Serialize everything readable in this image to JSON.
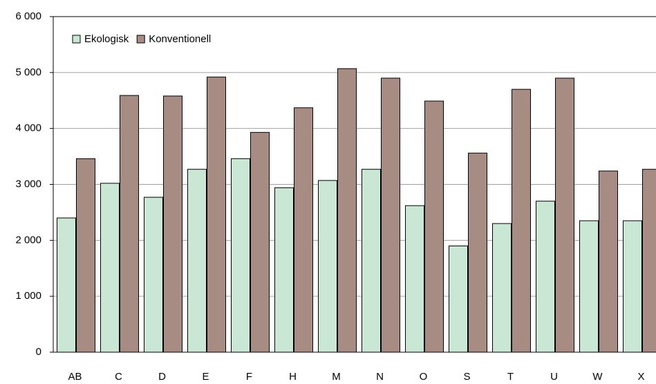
{
  "chart_data": {
    "type": "bar",
    "categories": [
      "AB",
      "C",
      "D",
      "E",
      "F",
      "H",
      "M",
      "N",
      "O",
      "S",
      "T",
      "U",
      "W",
      "X"
    ],
    "series": [
      {
        "name": "Ekologisk",
        "color": "#c9e7d4",
        "values": [
          2400,
          3020,
          2770,
          3270,
          3460,
          2940,
          3070,
          3270,
          2620,
          1900,
          2300,
          2700,
          2350,
          2350
        ]
      },
      {
        "name": "Konventionell",
        "color": "#a68c82",
        "values": [
          3460,
          4590,
          4580,
          4920,
          3930,
          4370,
          5070,
          4900,
          4490,
          3560,
          4700,
          4900,
          3240,
          3270
        ]
      }
    ],
    "ylim": [
      0,
      6000
    ],
    "yticks": [
      {
        "value": 0,
        "label": "0"
      },
      {
        "value": 1000,
        "label": "1 000"
      },
      {
        "value": 2000,
        "label": "2 000"
      },
      {
        "value": 3000,
        "label": "3 000"
      },
      {
        "value": 4000,
        "label": "4 000"
      },
      {
        "value": 5000,
        "label": "5 000"
      },
      {
        "value": 6000,
        "label": "6 000"
      }
    ],
    "grid": true,
    "legend": "top-left"
  }
}
